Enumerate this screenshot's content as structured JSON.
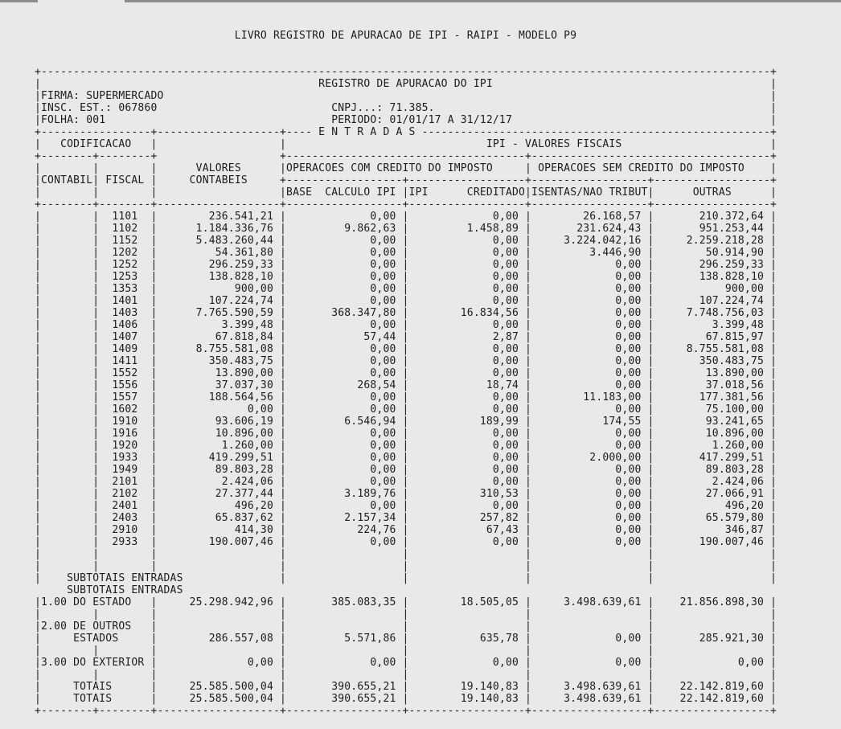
{
  "window": {
    "background_color": "#e9e9e9",
    "top_bar_color": "#8d8d8d",
    "text_color": "#1c1c1c"
  },
  "report": {
    "title": "LIVRO REGISTRO DE APURACAO DE IPI - RAIPI - MODELO P9",
    "box_title": "REGISTRO DE APURACAO DO IPI",
    "firm": {
      "firma_line": "FIRMA: SUPERMERCADO",
      "insc_line": "INSC. EST.: 067860",
      "cnpj_line": "CNPJ...: 71.385.",
      "folha_line": "FOLHA: 001",
      "periodo_line": "PERIODO: 01/01/17 A 31/12/17"
    },
    "headers": {
      "entradas": "E N T R A D A S",
      "codificacao": "CODIFICACAO",
      "contabil": "CONTABIL",
      "fiscal": "FISCAL",
      "valores_line1": "VALORES",
      "valores_line2": "CONTABEIS",
      "ipi_valores_fiscais": "IPI - VALORES FISCAIS",
      "com_credito": "OPERACOES COM CREDITO DO IMPOSTO",
      "sem_credito": "OPERACOES SEM CREDITO DO IMPOSTO",
      "base_calculo": "BASE  CALCULO IPI",
      "ipi_word": "IPI",
      "creditado": "CREDITADO",
      "isentas": "ISENTAS/NAO TRIBUT",
      "outras": "OUTRAS"
    },
    "table": {
      "value_columns": [
        "VALORES CONTABEIS",
        "BASE CALCULO IPI",
        "IPI CREDITADO",
        "ISENTAS/NAO TRIBUT",
        "OUTRAS"
      ],
      "rows": [
        {
          "fiscal": "1101",
          "values": [
            "236.541,21",
            "0,00",
            "0,00",
            "26.168,57",
            "210.372,64"
          ]
        },
        {
          "fiscal": "1102",
          "values": [
            "1.184.336,76",
            "9.862,63",
            "1.458,89",
            "231.624,43",
            "951.253,44"
          ]
        },
        {
          "fiscal": "1152",
          "values": [
            "5.483.260,44",
            "0,00",
            "0,00",
            "3.224.042,16",
            "2.259.218,28"
          ]
        },
        {
          "fiscal": "1202",
          "values": [
            "54.361,80",
            "0,00",
            "0,00",
            "3.446,90",
            "50.914,90"
          ]
        },
        {
          "fiscal": "1252",
          "values": [
            "296.259,33",
            "0,00",
            "0,00",
            "0,00",
            "296.259,33"
          ]
        },
        {
          "fiscal": "1253",
          "values": [
            "138.828,10",
            "0,00",
            "0,00",
            "0,00",
            "138.828,10"
          ]
        },
        {
          "fiscal": "1353",
          "values": [
            "900,00",
            "0,00",
            "0,00",
            "0,00",
            "900,00"
          ]
        },
        {
          "fiscal": "1401",
          "values": [
            "107.224,74",
            "0,00",
            "0,00",
            "0,00",
            "107.224,74"
          ]
        },
        {
          "fiscal": "1403",
          "values": [
            "7.765.590,59",
            "368.347,80",
            "16.834,56",
            "0,00",
            "7.748.756,03"
          ]
        },
        {
          "fiscal": "1406",
          "values": [
            "3.399,48",
            "0,00",
            "0,00",
            "0,00",
            "3.399,48"
          ]
        },
        {
          "fiscal": "1407",
          "values": [
            "67.818,84",
            "57,44",
            "2,87",
            "0,00",
            "67.815,97"
          ]
        },
        {
          "fiscal": "1409",
          "values": [
            "8.755.581,08",
            "0,00",
            "0,00",
            "0,00",
            "8.755.581,08"
          ]
        },
        {
          "fiscal": "1411",
          "values": [
            "350.483,75",
            "0,00",
            "0,00",
            "0,00",
            "350.483,75"
          ]
        },
        {
          "fiscal": "1552",
          "values": [
            "13.890,00",
            "0,00",
            "0,00",
            "0,00",
            "13.890,00"
          ]
        },
        {
          "fiscal": "1556",
          "values": [
            "37.037,30",
            "268,54",
            "18,74",
            "0,00",
            "37.018,56"
          ]
        },
        {
          "fiscal": "1557",
          "values": [
            "188.564,56",
            "0,00",
            "0,00",
            "11.183,00",
            "177.381,56"
          ]
        },
        {
          "fiscal": "1602",
          "values": [
            "0,00",
            "0,00",
            "0,00",
            "0,00",
            "75.100,00"
          ]
        },
        {
          "fiscal": "1910",
          "values": [
            "93.606,19",
            "6.546,94",
            "189,99",
            "174,55",
            "93.241,65"
          ]
        },
        {
          "fiscal": "1916",
          "values": [
            "10.896,00",
            "0,00",
            "0,00",
            "0,00",
            "10.896,00"
          ]
        },
        {
          "fiscal": "1920",
          "values": [
            "1.260,00",
            "0,00",
            "0,00",
            "0,00",
            "1.260,00"
          ]
        },
        {
          "fiscal": "1933",
          "values": [
            "419.299,51",
            "0,00",
            "0,00",
            "2.000,00",
            "417.299,51"
          ]
        },
        {
          "fiscal": "1949",
          "values": [
            "89.803,28",
            "0,00",
            "0,00",
            "0,00",
            "89.803,28"
          ]
        },
        {
          "fiscal": "2101",
          "values": [
            "2.424,06",
            "0,00",
            "0,00",
            "0,00",
            "2.424,06"
          ]
        },
        {
          "fiscal": "2102",
          "values": [
            "27.377,44",
            "3.189,76",
            "310,53",
            "0,00",
            "27.066,91"
          ]
        },
        {
          "fiscal": "2401",
          "values": [
            "496,20",
            "0,00",
            "0,00",
            "0,00",
            "496,20"
          ]
        },
        {
          "fiscal": "2403",
          "values": [
            "65.837,62",
            "2.157,34",
            "257,82",
            "0,00",
            "65.579,80"
          ]
        },
        {
          "fiscal": "2910",
          "values": [
            "414,30",
            "224,76",
            "67,43",
            "0,00",
            "346,87"
          ]
        },
        {
          "fiscal": "2933",
          "values": [
            "190.007,46",
            "0,00",
            "0,00",
            "0,00",
            "190.007,46"
          ]
        }
      ],
      "subtotals_heading": "SUBTOTAIS ENTRADAS",
      "subtotals": [
        {
          "lines": [
            "1.00 DO ESTADO"
          ],
          "values": [
            "25.298.942,96",
            "385.083,35",
            "18.505,05",
            "3.498.639,61",
            "21.856.898,30"
          ]
        },
        {
          "lines": [
            "2.00 DE OUTROS",
            "ESTADOS"
          ],
          "values": [
            "286.557,08",
            "5.571,86",
            "635,78",
            "0,00",
            "285.921,30"
          ]
        },
        {
          "lines": [
            "3.00 DO EXTERIOR"
          ],
          "values": [
            "0,00",
            "0,00",
            "0,00",
            "0,00",
            "0,00"
          ]
        }
      ],
      "totals": {
        "label": "TOTAIS",
        "values": [
          "25.585.500,04",
          "390.655,21",
          "19.140,83",
          "3.498.639,61",
          "22.142.819,60"
        ]
      }
    }
  }
}
